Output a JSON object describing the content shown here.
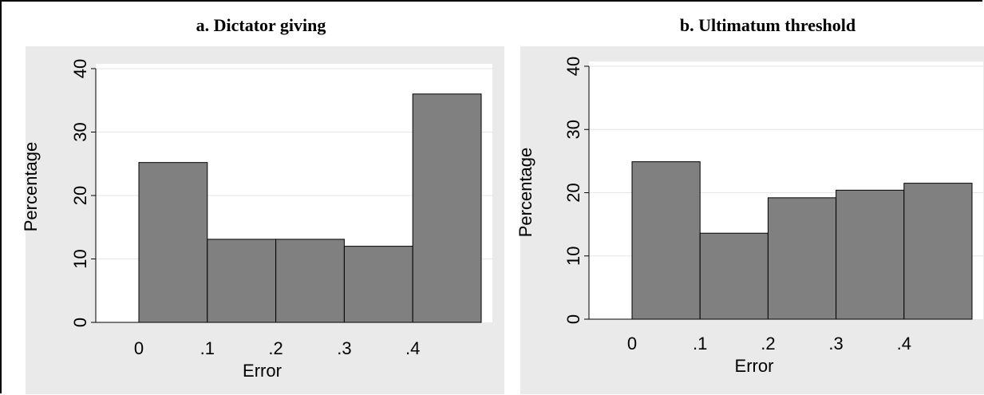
{
  "colors": {
    "panel_bg": "#eaeaea",
    "plot_bg": "#ffffff",
    "bar_fill": "#808080",
    "bar_stroke": "#000000",
    "grid": "#e6e6e6",
    "axis": "#000000"
  },
  "chart_data": [
    {
      "type": "bar",
      "title": "a. Dictator giving",
      "xlabel": "Error",
      "ylabel": "Percentage",
      "bins": [
        [
          0,
          0.1
        ],
        [
          0.1,
          0.2
        ],
        [
          0.2,
          0.3
        ],
        [
          0.3,
          0.4
        ],
        [
          0.4,
          0.5
        ]
      ],
      "values": [
        25.2,
        13.1,
        13.1,
        12.0,
        36.0
      ],
      "xlim": [
        -0.065,
        0.5
      ],
      "ylim": [
        0,
        40
      ],
      "xticks": [
        0,
        0.1,
        0.2,
        0.3,
        0.4
      ],
      "xtick_labels": [
        "0",
        ".1",
        ".2",
        ".3",
        ".4"
      ],
      "yticks": [
        0,
        10,
        20,
        30,
        40
      ],
      "ytick_labels": [
        "0",
        "10",
        "20",
        "30",
        "40"
      ],
      "grid": true,
      "legend": false
    },
    {
      "type": "bar",
      "title": "b. Ultimatum threshold",
      "xlabel": "Error",
      "ylabel": "Percentage",
      "bins": [
        [
          0,
          0.1
        ],
        [
          0.1,
          0.2
        ],
        [
          0.2,
          0.3
        ],
        [
          0.3,
          0.4
        ],
        [
          0.4,
          0.5
        ]
      ],
      "values": [
        24.9,
        13.6,
        19.2,
        20.4,
        21.5
      ],
      "xlim": [
        -0.065,
        0.5
      ],
      "ylim": [
        0,
        40
      ],
      "xticks": [
        0,
        0.1,
        0.2,
        0.3,
        0.4
      ],
      "xtick_labels": [
        "0",
        ".1",
        ".2",
        ".3",
        ".4"
      ],
      "yticks": [
        0,
        10,
        20,
        30,
        40
      ],
      "ytick_labels": [
        "0",
        "10",
        "20",
        "30",
        "40"
      ],
      "grid": true,
      "legend": false
    }
  ]
}
